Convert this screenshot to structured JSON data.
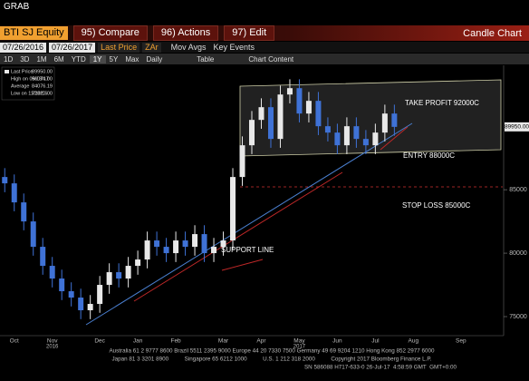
{
  "header": {
    "title": "GRAB"
  },
  "toolbar": {
    "security": "BTI SJ Equity",
    "buttons": [
      "95) Compare",
      "96) Actions",
      "97) Edit"
    ],
    "chart_type": "Candle Chart"
  },
  "controls": {
    "start_date": "07/26/2016",
    "end_date": "07/26/2017",
    "field": "Last Price",
    "currency": "ZAr",
    "options": [
      "Mov Avgs",
      "Key Events"
    ]
  },
  "periods": [
    "1D",
    "3D",
    "1M",
    "6M",
    "YTD",
    "1Y",
    "5Y",
    "Max"
  ],
  "frequency": "Daily",
  "tabs": [
    "Table",
    "Chart Content"
  ],
  "chart_data": {
    "type": "candlestick",
    "categories": [
      null,
      "Oct",
      null,
      null,
      null,
      "Nov",
      null,
      null,
      null,
      null,
      "Dec",
      null,
      null,
      null,
      "Jan",
      null,
      null,
      null,
      "Feb",
      null,
      null,
      null,
      null,
      "Mar",
      null,
      null,
      null,
      "Apr",
      null,
      null,
      null,
      "May",
      null,
      null,
      null,
      "Jun",
      null,
      null,
      null,
      "Jul",
      null,
      null,
      null,
      "Aug",
      null,
      null,
      null,
      null,
      "Sep",
      null,
      null,
      null,
      null
    ],
    "sub_categories": [
      null,
      null,
      null,
      null,
      null,
      "2016",
      null,
      null,
      null,
      null,
      null,
      null,
      null,
      null,
      null,
      null,
      null,
      null,
      null,
      null,
      null,
      null,
      null,
      null,
      null,
      null,
      null,
      null,
      null,
      null,
      null,
      "2017",
      null,
      null,
      null,
      null,
      null,
      null,
      null,
      null,
      null,
      null,
      null,
      null,
      null,
      null,
      null,
      null,
      null,
      null,
      null,
      null,
      null
    ],
    "open": [
      86000,
      85500,
      84000,
      82500,
      80500,
      79000,
      78000,
      77000,
      76500,
      75500,
      76000,
      77500,
      78500,
      78000,
      79000,
      79500,
      81000,
      80500,
      80000,
      81000,
      80500,
      81500,
      80000,
      80500,
      81000,
      86000,
      88500,
      90500,
      91500,
      89000,
      92500,
      93000,
      91000,
      92000,
      90000,
      89500,
      88500,
      90000,
      89000,
      88500,
      89500,
      91000,
      null,
      null,
      null,
      null,
      null,
      null,
      null,
      null,
      null,
      null,
      null
    ],
    "high": [
      86700,
      86200,
      84700,
      83200,
      81200,
      79700,
      78700,
      77700,
      77200,
      76700,
      78200,
      79200,
      79200,
      79700,
      80200,
      81700,
      81700,
      81200,
      81700,
      81700,
      82200,
      82200,
      81200,
      81700,
      86700,
      89200,
      91200,
      92200,
      92200,
      93200,
      93700,
      93700,
      92700,
      92700,
      90700,
      90200,
      90700,
      90700,
      89700,
      90200,
      91700,
      91700,
      null,
      null,
      null,
      null,
      null,
      null,
      null,
      null,
      null,
      null,
      null
    ],
    "low": [
      84800,
      83300,
      81800,
      79800,
      78300,
      77300,
      76300,
      75800,
      74800,
      74800,
      75300,
      76800,
      77300,
      77300,
      78300,
      78800,
      79800,
      79300,
      79300,
      79800,
      79800,
      79300,
      79300,
      79800,
      80300,
      85300,
      87800,
      89800,
      88300,
      88300,
      91800,
      90300,
      90300,
      89300,
      88800,
      87800,
      87800,
      88300,
      87800,
      87800,
      88800,
      89250,
      null,
      null,
      null,
      null,
      null,
      null,
      null,
      null,
      null,
      null,
      null
    ],
    "close": [
      85500,
      84000,
      82500,
      80500,
      79000,
      78000,
      77000,
      76500,
      75500,
      76000,
      77500,
      78500,
      78000,
      79000,
      79500,
      81000,
      80500,
      80000,
      81000,
      80500,
      81500,
      80000,
      80500,
      81000,
      86000,
      88500,
      90500,
      91500,
      89000,
      92500,
      93000,
      91000,
      92000,
      90000,
      89500,
      88500,
      90000,
      89000,
      88500,
      89500,
      91000,
      89950,
      null,
      null,
      null,
      null,
      null,
      null,
      null,
      null,
      null,
      null,
      null
    ],
    "up_color": "#e8e8e8",
    "down_color": "#3f72d6",
    "ylim": [
      73500,
      94800
    ],
    "yticks": [
      75000,
      80000,
      85000
    ],
    "stats": [
      {
        "label": "Last Price",
        "value": "89950.00"
      },
      {
        "label": "High on 05/18/17",
        "value": "96074.00"
      },
      {
        "label": "Average",
        "value": "84076.19"
      },
      {
        "label": "Low on 11/10/16",
        "value": "72820.00"
      }
    ],
    "annotations": [
      "TAKE PROFIT 92000C",
      "ENTRY 88000C",
      "STOP LOSS 85000C",
      "SUPPORT LINE"
    ]
  },
  "footer": [
    "Australia 61 2 9777 8600 Brazil 5511 2395 9000 Europe 44 20 7330 7500 Germany 49 69 9204 1210 Hong Kong 852 2977 6000",
    "Japan 81 3 3201 8900          Singapore 65 6212 1000          U.S. 1 212 318 2000          Copyright 2017 Bloomberg Finance L.P.",
    "SN 586088 H717-633-0 26-Jul-17  4:58:59 GMT  GMT+0:00"
  ]
}
